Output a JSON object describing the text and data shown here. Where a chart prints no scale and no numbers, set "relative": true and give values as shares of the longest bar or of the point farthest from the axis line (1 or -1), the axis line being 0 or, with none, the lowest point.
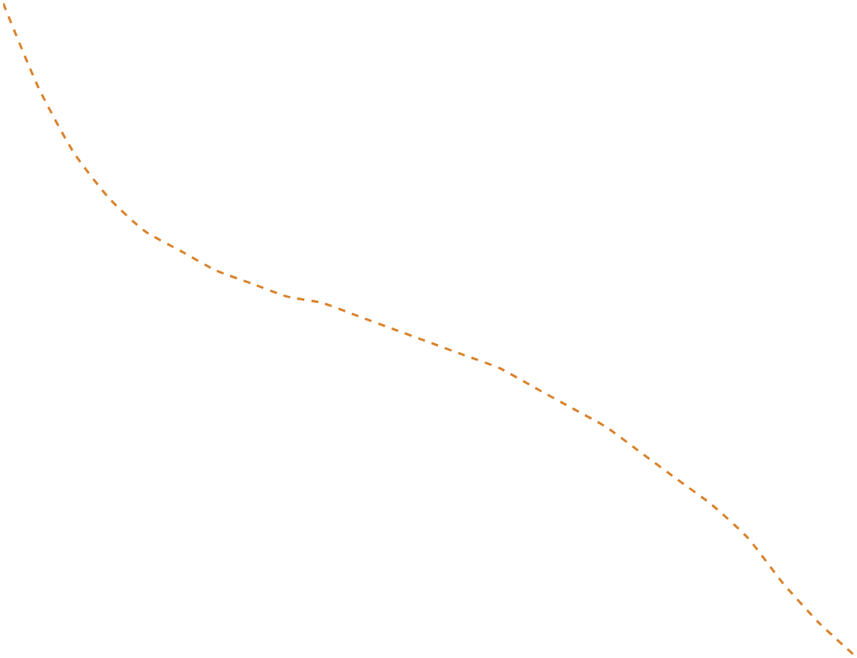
{
  "chart_data": {
    "type": "line",
    "relative": true,
    "line_style": "dashed",
    "color": "#d9822b",
    "categories": [
      null,
      null,
      null,
      null,
      null,
      null,
      null,
      null,
      null,
      null,
      null,
      null,
      null,
      null,
      null,
      null,
      null,
      null,
      null,
      null,
      null,
      null,
      null,
      null,
      null
    ],
    "values": [
      1.0,
      0.87,
      0.77,
      0.7,
      0.65,
      0.62,
      0.59,
      0.57,
      0.55,
      0.54,
      0.52,
      0.5,
      0.48,
      0.46,
      0.44,
      0.41,
      0.38,
      0.35,
      0.31,
      0.27,
      0.23,
      0.18,
      0.11,
      0.05,
      0.0
    ]
  }
}
